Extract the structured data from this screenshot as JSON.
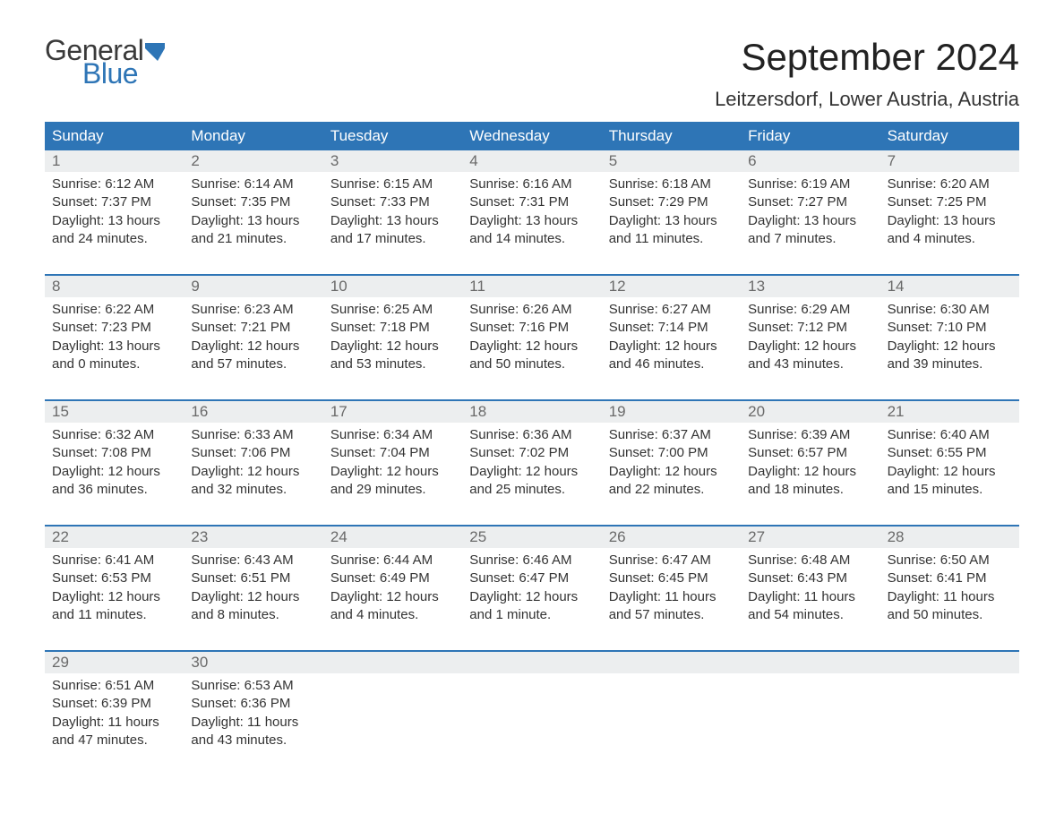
{
  "logo": {
    "text_top": "General",
    "text_bottom": "Blue",
    "flag_color": "#2e75b6"
  },
  "title": "September 2024",
  "location": "Leitzersdorf, Lower Austria, Austria",
  "colors": {
    "header_bg": "#2e75b6",
    "header_text": "#ffffff",
    "daynum_bg": "#eceeef",
    "daynum_text": "#6a6a6a",
    "body_text": "#333333",
    "week_border": "#2e75b6",
    "background": "#ffffff"
  },
  "typography": {
    "title_fontsize": 42,
    "location_fontsize": 22,
    "header_fontsize": 17,
    "daynum_fontsize": 17,
    "body_fontsize": 15,
    "logo_fontsize": 32
  },
  "layout": {
    "columns": 7,
    "rows": 5
  },
  "weekdays": [
    "Sunday",
    "Monday",
    "Tuesday",
    "Wednesday",
    "Thursday",
    "Friday",
    "Saturday"
  ],
  "weeks": [
    [
      {
        "n": "1",
        "sunrise": "Sunrise: 6:12 AM",
        "sunset": "Sunset: 7:37 PM",
        "d1": "Daylight: 13 hours",
        "d2": "and 24 minutes."
      },
      {
        "n": "2",
        "sunrise": "Sunrise: 6:14 AM",
        "sunset": "Sunset: 7:35 PM",
        "d1": "Daylight: 13 hours",
        "d2": "and 21 minutes."
      },
      {
        "n": "3",
        "sunrise": "Sunrise: 6:15 AM",
        "sunset": "Sunset: 7:33 PM",
        "d1": "Daylight: 13 hours",
        "d2": "and 17 minutes."
      },
      {
        "n": "4",
        "sunrise": "Sunrise: 6:16 AM",
        "sunset": "Sunset: 7:31 PM",
        "d1": "Daylight: 13 hours",
        "d2": "and 14 minutes."
      },
      {
        "n": "5",
        "sunrise": "Sunrise: 6:18 AM",
        "sunset": "Sunset: 7:29 PM",
        "d1": "Daylight: 13 hours",
        "d2": "and 11 minutes."
      },
      {
        "n": "6",
        "sunrise": "Sunrise: 6:19 AM",
        "sunset": "Sunset: 7:27 PM",
        "d1": "Daylight: 13 hours",
        "d2": "and 7 minutes."
      },
      {
        "n": "7",
        "sunrise": "Sunrise: 6:20 AM",
        "sunset": "Sunset: 7:25 PM",
        "d1": "Daylight: 13 hours",
        "d2": "and 4 minutes."
      }
    ],
    [
      {
        "n": "8",
        "sunrise": "Sunrise: 6:22 AM",
        "sunset": "Sunset: 7:23 PM",
        "d1": "Daylight: 13 hours",
        "d2": "and 0 minutes."
      },
      {
        "n": "9",
        "sunrise": "Sunrise: 6:23 AM",
        "sunset": "Sunset: 7:21 PM",
        "d1": "Daylight: 12 hours",
        "d2": "and 57 minutes."
      },
      {
        "n": "10",
        "sunrise": "Sunrise: 6:25 AM",
        "sunset": "Sunset: 7:18 PM",
        "d1": "Daylight: 12 hours",
        "d2": "and 53 minutes."
      },
      {
        "n": "11",
        "sunrise": "Sunrise: 6:26 AM",
        "sunset": "Sunset: 7:16 PM",
        "d1": "Daylight: 12 hours",
        "d2": "and 50 minutes."
      },
      {
        "n": "12",
        "sunrise": "Sunrise: 6:27 AM",
        "sunset": "Sunset: 7:14 PM",
        "d1": "Daylight: 12 hours",
        "d2": "and 46 minutes."
      },
      {
        "n": "13",
        "sunrise": "Sunrise: 6:29 AM",
        "sunset": "Sunset: 7:12 PM",
        "d1": "Daylight: 12 hours",
        "d2": "and 43 minutes."
      },
      {
        "n": "14",
        "sunrise": "Sunrise: 6:30 AM",
        "sunset": "Sunset: 7:10 PM",
        "d1": "Daylight: 12 hours",
        "d2": "and 39 minutes."
      }
    ],
    [
      {
        "n": "15",
        "sunrise": "Sunrise: 6:32 AM",
        "sunset": "Sunset: 7:08 PM",
        "d1": "Daylight: 12 hours",
        "d2": "and 36 minutes."
      },
      {
        "n": "16",
        "sunrise": "Sunrise: 6:33 AM",
        "sunset": "Sunset: 7:06 PM",
        "d1": "Daylight: 12 hours",
        "d2": "and 32 minutes."
      },
      {
        "n": "17",
        "sunrise": "Sunrise: 6:34 AM",
        "sunset": "Sunset: 7:04 PM",
        "d1": "Daylight: 12 hours",
        "d2": "and 29 minutes."
      },
      {
        "n": "18",
        "sunrise": "Sunrise: 6:36 AM",
        "sunset": "Sunset: 7:02 PM",
        "d1": "Daylight: 12 hours",
        "d2": "and 25 minutes."
      },
      {
        "n": "19",
        "sunrise": "Sunrise: 6:37 AM",
        "sunset": "Sunset: 7:00 PM",
        "d1": "Daylight: 12 hours",
        "d2": "and 22 minutes."
      },
      {
        "n": "20",
        "sunrise": "Sunrise: 6:39 AM",
        "sunset": "Sunset: 6:57 PM",
        "d1": "Daylight: 12 hours",
        "d2": "and 18 minutes."
      },
      {
        "n": "21",
        "sunrise": "Sunrise: 6:40 AM",
        "sunset": "Sunset: 6:55 PM",
        "d1": "Daylight: 12 hours",
        "d2": "and 15 minutes."
      }
    ],
    [
      {
        "n": "22",
        "sunrise": "Sunrise: 6:41 AM",
        "sunset": "Sunset: 6:53 PM",
        "d1": "Daylight: 12 hours",
        "d2": "and 11 minutes."
      },
      {
        "n": "23",
        "sunrise": "Sunrise: 6:43 AM",
        "sunset": "Sunset: 6:51 PM",
        "d1": "Daylight: 12 hours",
        "d2": "and 8 minutes."
      },
      {
        "n": "24",
        "sunrise": "Sunrise: 6:44 AM",
        "sunset": "Sunset: 6:49 PM",
        "d1": "Daylight: 12 hours",
        "d2": "and 4 minutes."
      },
      {
        "n": "25",
        "sunrise": "Sunrise: 6:46 AM",
        "sunset": "Sunset: 6:47 PM",
        "d1": "Daylight: 12 hours",
        "d2": "and 1 minute."
      },
      {
        "n": "26",
        "sunrise": "Sunrise: 6:47 AM",
        "sunset": "Sunset: 6:45 PM",
        "d1": "Daylight: 11 hours",
        "d2": "and 57 minutes."
      },
      {
        "n": "27",
        "sunrise": "Sunrise: 6:48 AM",
        "sunset": "Sunset: 6:43 PM",
        "d1": "Daylight: 11 hours",
        "d2": "and 54 minutes."
      },
      {
        "n": "28",
        "sunrise": "Sunrise: 6:50 AM",
        "sunset": "Sunset: 6:41 PM",
        "d1": "Daylight: 11 hours",
        "d2": "and 50 minutes."
      }
    ],
    [
      {
        "n": "29",
        "sunrise": "Sunrise: 6:51 AM",
        "sunset": "Sunset: 6:39 PM",
        "d1": "Daylight: 11 hours",
        "d2": "and 47 minutes."
      },
      {
        "n": "30",
        "sunrise": "Sunrise: 6:53 AM",
        "sunset": "Sunset: 6:36 PM",
        "d1": "Daylight: 11 hours",
        "d2": "and 43 minutes."
      },
      {
        "empty": true
      },
      {
        "empty": true
      },
      {
        "empty": true
      },
      {
        "empty": true
      },
      {
        "empty": true
      }
    ]
  ]
}
